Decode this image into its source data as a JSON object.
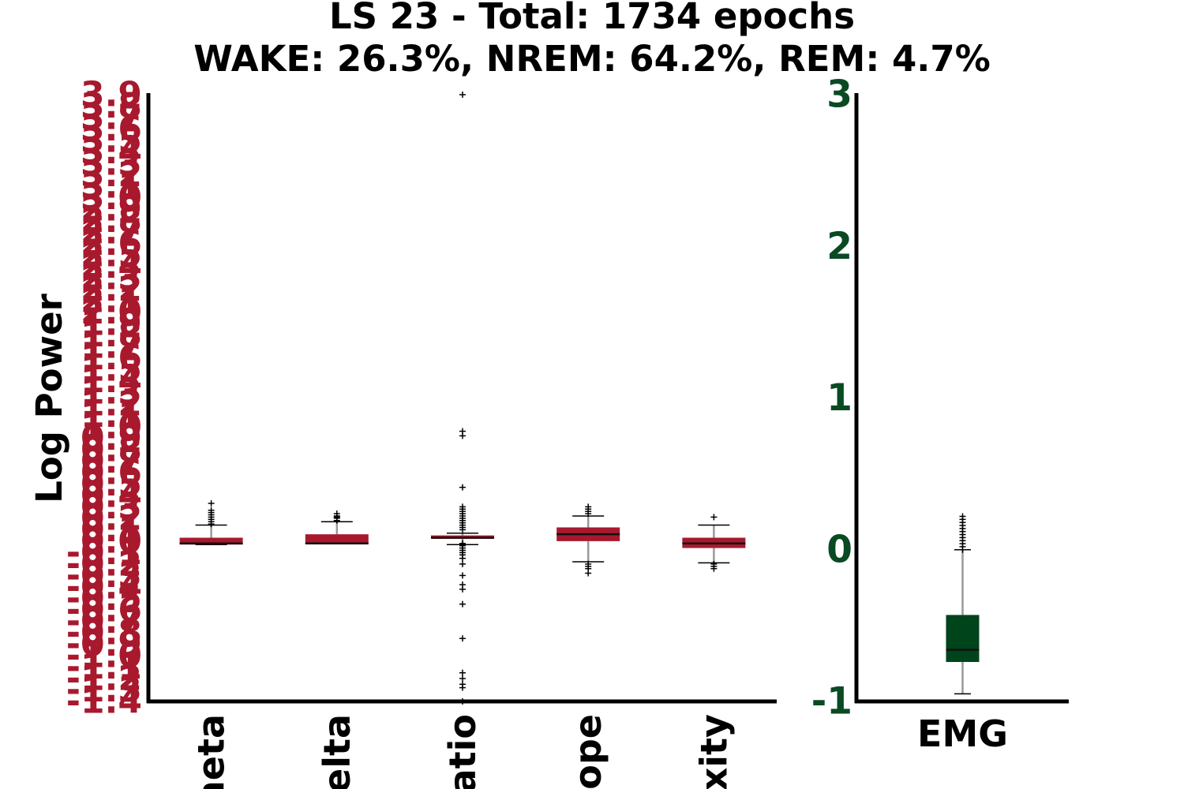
{
  "chart_data": [
    {
      "type": "box",
      "title_line1": "LS 23 - Total: 1734 epochs",
      "title_line2": "WAKE: 26.3%, NREM: 64.2%, REM: 4.7%",
      "ylabel": "Log Power",
      "box_color": "#a8192e",
      "tick_color": "#a8192e",
      "ylim": [
        -1.4,
        3.9
      ],
      "yticks": [
        -1.4,
        -1.3,
        -1.2,
        -1.1,
        -1.0,
        -0.9,
        -0.8,
        -0.7,
        -0.6,
        -0.5,
        -0.4,
        -0.3,
        -0.2,
        -0.1,
        0.0,
        0.1,
        0.2,
        0.3,
        0.4,
        0.5,
        0.6,
        0.7,
        0.8,
        0.9,
        1.0,
        1.1,
        1.2,
        1.3,
        1.4,
        1.5,
        1.6,
        1.7,
        1.8,
        1.9,
        2.0,
        2.1,
        2.2,
        2.3,
        2.4,
        2.5,
        2.6,
        2.7,
        2.8,
        2.9,
        3.0,
        3.1,
        3.2,
        3.3,
        3.4,
        3.5,
        3.6,
        3.7,
        3.8,
        3.9
      ],
      "ytick_labels": [
        "-1.4",
        "-1.3",
        "-1.2",
        "-1.1",
        "-1.0",
        "-0.9",
        "-0.8",
        "-0.7",
        "-0.6",
        "-0.5",
        "-0.4",
        "-0.3",
        "-0.2",
        "-0.1",
        "0.0",
        "0.1",
        "0.2",
        "0.3",
        "0.4",
        "0.5",
        "0.6",
        "0.7",
        "0.8",
        "0.9",
        "1.0",
        "1.1",
        "1.2",
        "1.3",
        "1.4",
        "1.5",
        "1.6",
        "1.7",
        "1.8",
        "1.9",
        "2.0",
        "2.1",
        "2.2",
        "2.3",
        "2.4",
        "2.5",
        "2.6",
        "2.7",
        "2.8",
        "2.9",
        "3.0",
        "3.1",
        "3.2",
        "3.3",
        "3.4",
        "3.5",
        "3.6",
        "3.7",
        "3.8",
        "3.9"
      ],
      "categories": [
        "Theta",
        "Delta",
        "Ratio",
        "Slope",
        "Complexity"
      ],
      "category_labels_visible": [
        "heta",
        "elta",
        "atio",
        "ope",
        "xity"
      ],
      "boxes": [
        {
          "category": "Theta",
          "whislo": -0.03,
          "q1": -0.03,
          "median": -0.02,
          "q3": 0.03,
          "whishi": 0.14,
          "fliers": [
            0.15,
            0.17,
            0.19,
            0.21,
            0.23,
            0.25,
            0.27,
            0.33
          ]
        },
        {
          "category": "Delta",
          "whislo": -0.02,
          "q1": -0.02,
          "median": -0.02,
          "q3": 0.06,
          "whishi": 0.17,
          "fliers": [
            0.18,
            0.2,
            0.21,
            0.22,
            0.24
          ]
        },
        {
          "category": "Ratio",
          "whislo": -0.03,
          "q1": 0.02,
          "median": 0.03,
          "q3": 0.05,
          "whishi": 0.07,
          "fliers": [
            3.9,
            0.96,
            0.92,
            0.47,
            0.3,
            0.28,
            0.26,
            0.24,
            0.22,
            0.2,
            0.18,
            0.16,
            0.14,
            0.12,
            0.1,
            -0.02,
            -0.04,
            -0.06,
            -0.08,
            -0.1,
            -0.12,
            -0.15,
            -0.2,
            -0.3,
            -0.38,
            -0.42,
            -0.55,
            -0.85,
            -1.15,
            -1.2,
            -1.25,
            -1.28,
            -1.4
          ]
        },
        {
          "category": "Slope",
          "whislo": -0.18,
          "q1": 0.0,
          "median": 0.06,
          "q3": 0.12,
          "whishi": 0.22,
          "fliers": [
            0.24,
            0.26,
            0.28,
            0.3,
            -0.2,
            -0.22,
            -0.24,
            -0.28
          ]
        },
        {
          "category": "Complexity",
          "whislo": -0.19,
          "q1": -0.06,
          "median": -0.02,
          "q3": 0.03,
          "whishi": 0.14,
          "fliers": [
            0.21,
            -0.2,
            -0.22,
            -0.24
          ]
        }
      ]
    },
    {
      "type": "box",
      "box_color": "#00441b",
      "tick_color": "#0a4a22",
      "ylim": [
        -1,
        3
      ],
      "yticks": [
        -1,
        0,
        1,
        2,
        3
      ],
      "ytick_labels": [
        "-1",
        "0",
        "1",
        "2",
        "3"
      ],
      "categories": [
        "EMG"
      ],
      "boxes": [
        {
          "category": "EMG",
          "whislo": -0.95,
          "q1": -0.74,
          "median": -0.66,
          "q3": -0.43,
          "whishi": 0.0,
          "fliers": [
            0.0,
            0.02,
            0.04,
            0.06,
            0.08,
            0.1,
            0.12,
            0.14,
            0.16,
            0.18,
            0.2,
            0.22
          ]
        }
      ]
    }
  ]
}
